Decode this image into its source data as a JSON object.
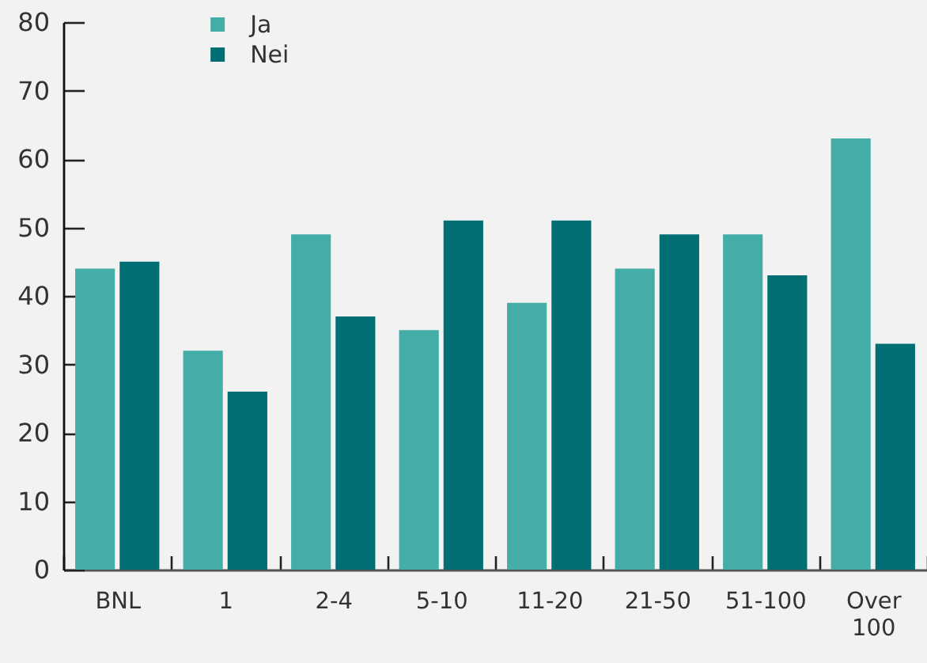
{
  "chart_data": {
    "type": "bar",
    "categories": [
      "BNL",
      "1",
      "2-4",
      "5-10",
      "11-20",
      "21-50",
      "51-100",
      "Over 100"
    ],
    "series": [
      {
        "name": "Ja",
        "color": "#45ada8",
        "values": [
          44,
          32,
          49,
          35,
          39,
          44,
          49,
          63
        ]
      },
      {
        "name": "Nei",
        "color": "#006e73",
        "values": [
          45,
          26,
          37,
          51,
          51,
          49,
          43,
          33
        ]
      }
    ],
    "ylim": [
      0,
      80
    ],
    "yticks": [
      0,
      10,
      20,
      30,
      40,
      50,
      60,
      70,
      80
    ],
    "legend": "top left"
  }
}
